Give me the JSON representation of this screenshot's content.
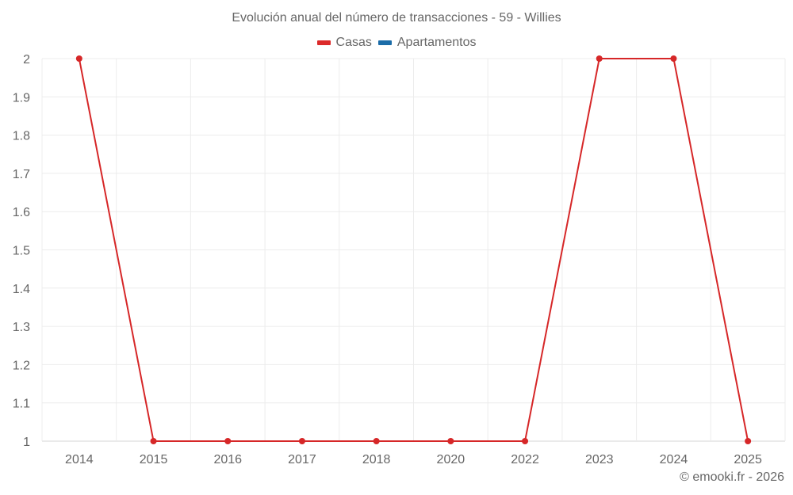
{
  "chart_data": {
    "type": "line",
    "title": "Evolución anual del número de transacciones - 59 - Willies",
    "categories": [
      "2014",
      "2015",
      "2016",
      "2017",
      "2018",
      "2020",
      "2022",
      "2023",
      "2024",
      "2025"
    ],
    "series": [
      {
        "name": "Casas",
        "color": "#d62728",
        "values": [
          2,
          1,
          1,
          1,
          1,
          1,
          1,
          2,
          2,
          1
        ]
      },
      {
        "name": "Apartamentos",
        "color": "#1f6fa8",
        "values": []
      }
    ],
    "xlabel": "",
    "ylabel": "",
    "ylim": [
      1,
      2
    ],
    "yticks": [
      "2",
      "1.9",
      "1.8",
      "1.7",
      "1.6",
      "1.5",
      "1.4",
      "1.3",
      "1.2",
      "1.1",
      "1"
    ],
    "grid": true,
    "legend_position": "top-center"
  },
  "legend": [
    {
      "label": "Casas",
      "color": "#dc2a2a"
    },
    {
      "label": "Apartamentos",
      "color": "#1b6ca8"
    }
  ],
  "credit": "© emooki.fr - 2026"
}
